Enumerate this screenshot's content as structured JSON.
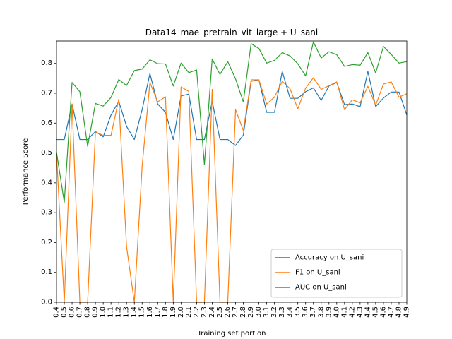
{
  "chart_data": {
    "type": "line",
    "title": "Data14_mae_pretrain_vit_large + U_sani",
    "xlabel": "Training set portion",
    "ylabel": "Performance Score",
    "ylim": [
      0,
      0.875
    ],
    "yticks": [
      0.0,
      0.1,
      0.2,
      0.3,
      0.4,
      0.5,
      0.6,
      0.7,
      0.8
    ],
    "yticklabels": [
      "0.0",
      "0.1",
      "0.2",
      "0.3",
      "0.4",
      "0.5",
      "0.6",
      "0.7",
      "0.8"
    ],
    "x": [
      0.4,
      0.5,
      0.6,
      0.7,
      0.8,
      0.9,
      1.0,
      1.1,
      1.2,
      1.3,
      1.4,
      1.5,
      1.6,
      1.7,
      1.8,
      1.9,
      2.0,
      2.1,
      2.2,
      2.3,
      2.4,
      2.5,
      2.6,
      2.7,
      2.8,
      2.9,
      3.0,
      3.1,
      3.2,
      3.3,
      3.4,
      3.5,
      3.6,
      3.7,
      3.8,
      3.9,
      4.0,
      4.1,
      4.2,
      4.3,
      4.4,
      4.5,
      4.6,
      4.7,
      4.8,
      4.9
    ],
    "xticklabels": [
      "0.4",
      "0.5",
      "0.6",
      "0.7",
      "0.8",
      "0.9",
      "1.0",
      "1.1",
      "1.2",
      "1.3",
      "1.4",
      "1.5",
      "1.6",
      "1.7",
      "1.8",
      "1.9",
      "2.0",
      "2.1",
      "2.2",
      "2.3",
      "2.4",
      "2.5",
      "2.6",
      "2.7",
      "2.8",
      "2.9",
      "3.0",
      "3.1",
      "3.2",
      "3.3",
      "3.4",
      "3.5",
      "3.6",
      "3.7",
      "3.8",
      "3.9",
      "4.0",
      "4.1",
      "4.2",
      "4.3",
      "4.4",
      "4.5",
      "4.6",
      "4.7",
      "4.8",
      "4.9"
    ],
    "series": [
      {
        "name": "Accuracy on U_sani",
        "color": "#1f77b4",
        "values": [
          0.545,
          0.545,
          0.664,
          0.545,
          0.545,
          0.572,
          0.554,
          0.627,
          0.673,
          0.589,
          0.545,
          0.645,
          0.766,
          0.664,
          0.636,
          0.545,
          0.691,
          0.697,
          0.545,
          0.545,
          0.673,
          0.545,
          0.545,
          0.525,
          0.56,
          0.74,
          0.745,
          0.636,
          0.636,
          0.773,
          0.683,
          0.683,
          0.705,
          0.718,
          0.676,
          0.724,
          0.736,
          0.662,
          0.664,
          0.655,
          0.773,
          0.655,
          0.684,
          0.704,
          0.704,
          0.627
        ]
      },
      {
        "name": "F1 on U_sani",
        "color": "#ff7f0e",
        "values": [
          0.5,
          0.0,
          0.664,
          0.0,
          0.0,
          0.57,
          0.559,
          0.559,
          0.68,
          0.186,
          0.0,
          0.455,
          0.736,
          0.671,
          0.688,
          0.0,
          0.721,
          0.706,
          0.0,
          0.0,
          0.713,
          0.0,
          0.0,
          0.645,
          0.575,
          0.745,
          0.745,
          0.664,
          0.687,
          0.74,
          0.715,
          0.648,
          0.717,
          0.752,
          0.713,
          0.725,
          0.738,
          0.645,
          0.678,
          0.668,
          0.723,
          0.66,
          0.731,
          0.738,
          0.687,
          0.698
        ]
      },
      {
        "name": "AUC on U_sani",
        "color": "#2ca02c",
        "values": [
          0.503,
          0.335,
          0.736,
          0.705,
          0.522,
          0.666,
          0.657,
          0.686,
          0.746,
          0.726,
          0.776,
          0.781,
          0.812,
          0.799,
          0.798,
          0.724,
          0.801,
          0.769,
          0.778,
          0.461,
          0.815,
          0.763,
          0.806,
          0.748,
          0.671,
          0.866,
          0.85,
          0.801,
          0.81,
          0.836,
          0.825,
          0.799,
          0.758,
          0.872,
          0.818,
          0.839,
          0.829,
          0.79,
          0.796,
          0.794,
          0.836,
          0.768,
          0.857,
          0.83,
          0.801,
          0.806
        ]
      }
    ],
    "legend_position": "bottom-right",
    "grid": false
  }
}
